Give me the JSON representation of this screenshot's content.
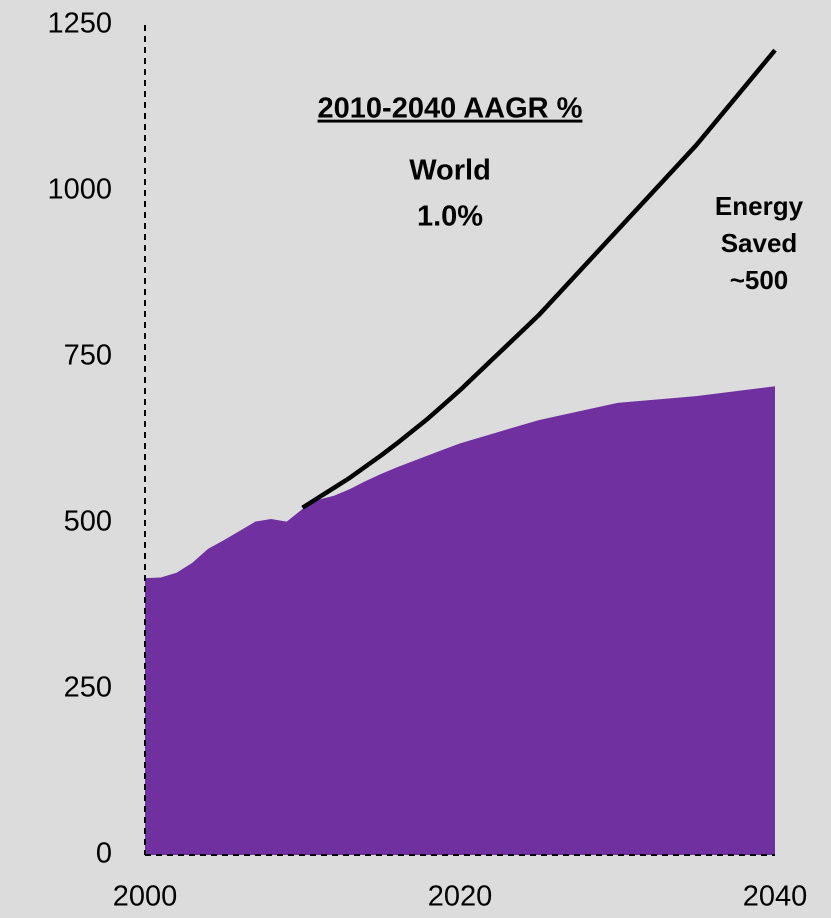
{
  "chart_data": {
    "type": "area",
    "x": [
      2000,
      2001,
      2002,
      2003,
      2004,
      2005,
      2006,
      2007,
      2008,
      2009,
      2010,
      2011,
      2012,
      2013,
      2014,
      2015,
      2016,
      2017,
      2018,
      2019,
      2020,
      2025,
      2030,
      2035,
      2040
    ],
    "series": [
      {
        "type": "area",
        "color": "#7030a0",
        "values": [
          417,
          418,
          425,
          440,
          461,
          474,
          488,
          502,
          506,
          502,
          521,
          535,
          541,
          551,
          563,
          574,
          584,
          593,
          602,
          611,
          620,
          655,
          681,
          691,
          706
        ]
      },
      {
        "type": "line",
        "color": "#000000",
        "values": [
          null,
          null,
          null,
          null,
          null,
          null,
          null,
          null,
          null,
          null,
          523,
          538,
          553,
          568,
          585,
          602,
          620,
          639,
          658,
          679,
          700,
          813,
          941,
          1069,
          1212
        ]
      }
    ],
    "xlim": [
      2000,
      2040
    ],
    "xticks": [
      2000,
      2020,
      2040
    ],
    "ylim": [
      0,
      1250
    ],
    "yticks": [
      0,
      250,
      500,
      750,
      1000,
      1250
    ],
    "annotations": [
      {
        "lines": [
          "2010-2040 AAGR %"
        ],
        "underline": true
      },
      {
        "lines": [
          "World",
          "1.0%"
        ]
      },
      {
        "lines": [
          "Energy",
          "Saved",
          "~500"
        ]
      }
    ]
  }
}
